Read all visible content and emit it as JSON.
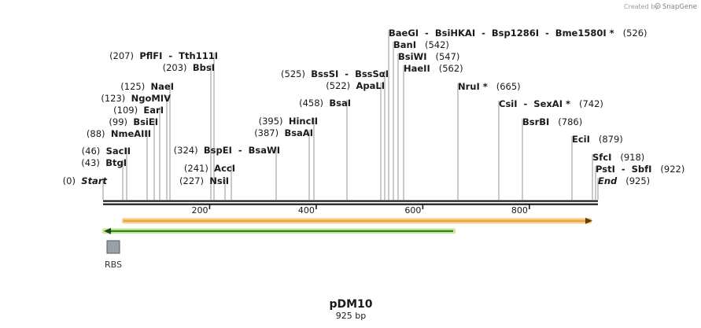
{
  "credit": {
    "created_by": "Created by",
    "brand": "SnapGene"
  },
  "plasmid": {
    "name": "pDM10",
    "length_label": "925 bp",
    "length": 925
  },
  "ruler": {
    "ticks": [
      {
        "bp": 200,
        "label": "200"
      },
      {
        "bp": 400,
        "label": "400"
      },
      {
        "bp": 600,
        "label": "600"
      },
      {
        "bp": 800,
        "label": "800"
      }
    ]
  },
  "features": {
    "orange_arrow": {
      "direction": "forward",
      "color": "#e8a33a",
      "border": "#f6d08a"
    },
    "green_arrow": {
      "direction": "reverse",
      "color": "#2f8a1e",
      "border": "#c9e8a0"
    },
    "rbs": {
      "label": "RBS",
      "color": "#9aa0aa"
    }
  },
  "sites": [
    {
      "name": "Start",
      "pos": "(0)",
      "bp": 0,
      "style": "italic",
      "pos_side": "left"
    },
    {
      "name": "BtgI",
      "pos": "(43)",
      "bp": 43,
      "pos_side": "left"
    },
    {
      "name": "SacII",
      "pos": "(46)",
      "bp": 46,
      "pos_side": "left"
    },
    {
      "name": "NmeAIII",
      "pos": "(88)",
      "bp": 88,
      "pos_side": "left"
    },
    {
      "name": "BsiEI",
      "pos": "(99)",
      "bp": 99,
      "pos_side": "left"
    },
    {
      "name": "EarI",
      "pos": "(109)",
      "bp": 109,
      "pos_side": "left"
    },
    {
      "name": "NgoMIV",
      "pos": "(123)",
      "bp": 123,
      "pos_side": "left"
    },
    {
      "name": "NaeI",
      "pos": "(125)",
      "bp": 125,
      "pos_side": "left"
    },
    {
      "name": "BbsI",
      "pos": "(203)",
      "bp": 203,
      "pos_side": "left"
    },
    {
      "name": "PflFI  -  Tth111I",
      "pos": "(207)",
      "bp": 207,
      "pos_side": "left"
    },
    {
      "name": "NsiI",
      "pos": "(227)",
      "bp": 227,
      "pos_side": "left"
    },
    {
      "name": "AccI",
      "pos": "(241)",
      "bp": 241,
      "pos_side": "left"
    },
    {
      "name": "BspEI  -  BsaWI",
      "pos": "(324)",
      "bp": 324,
      "pos_side": "left"
    },
    {
      "name": "BsaAI",
      "pos": "(387)",
      "bp": 387,
      "pos_side": "left"
    },
    {
      "name": "HincII",
      "pos": "(395)",
      "bp": 395,
      "pos_side": "left"
    },
    {
      "name": "BsaI",
      "pos": "(458)",
      "bp": 458,
      "pos_side": "left"
    },
    {
      "name": "ApaLI",
      "pos": "(522)",
      "bp": 522,
      "pos_side": "left"
    },
    {
      "name": "BssSI  -  BssSαI",
      "pos": "(525)",
      "bp": 525,
      "pos_side": "left"
    },
    {
      "name": "BaeGI  -  BsiHKAI  -  Bsp1286I  -  Bme1580I *",
      "pos": "(526)",
      "bp": 526,
      "pos_side": "right"
    },
    {
      "name": "BanI",
      "pos": "(542)",
      "bp": 542,
      "pos_side": "right"
    },
    {
      "name": "BsiWI",
      "pos": "(547)",
      "bp": 547,
      "pos_side": "right"
    },
    {
      "name": "HaeII",
      "pos": "(562)",
      "bp": 562,
      "pos_side": "right"
    },
    {
      "name": "NruI *",
      "pos": "(665)",
      "bp": 665,
      "pos_side": "right"
    },
    {
      "name": "CsiI  -  SexAI *",
      "pos": "(742)",
      "bp": 742,
      "pos_side": "right"
    },
    {
      "name": "BsrBI",
      "pos": "(786)",
      "bp": 786,
      "pos_side": "right"
    },
    {
      "name": "EciI",
      "pos": "(879)",
      "bp": 879,
      "pos_side": "right"
    },
    {
      "name": "SfcI",
      "pos": "(918)",
      "bp": 918,
      "pos_side": "right"
    },
    {
      "name": "PstI  -  SbfI",
      "pos": "(922)",
      "bp": 922,
      "pos_side": "right"
    },
    {
      "name": "End",
      "pos": "(925)",
      "bp": 925,
      "style": "italic",
      "pos_side": "right"
    }
  ]
}
